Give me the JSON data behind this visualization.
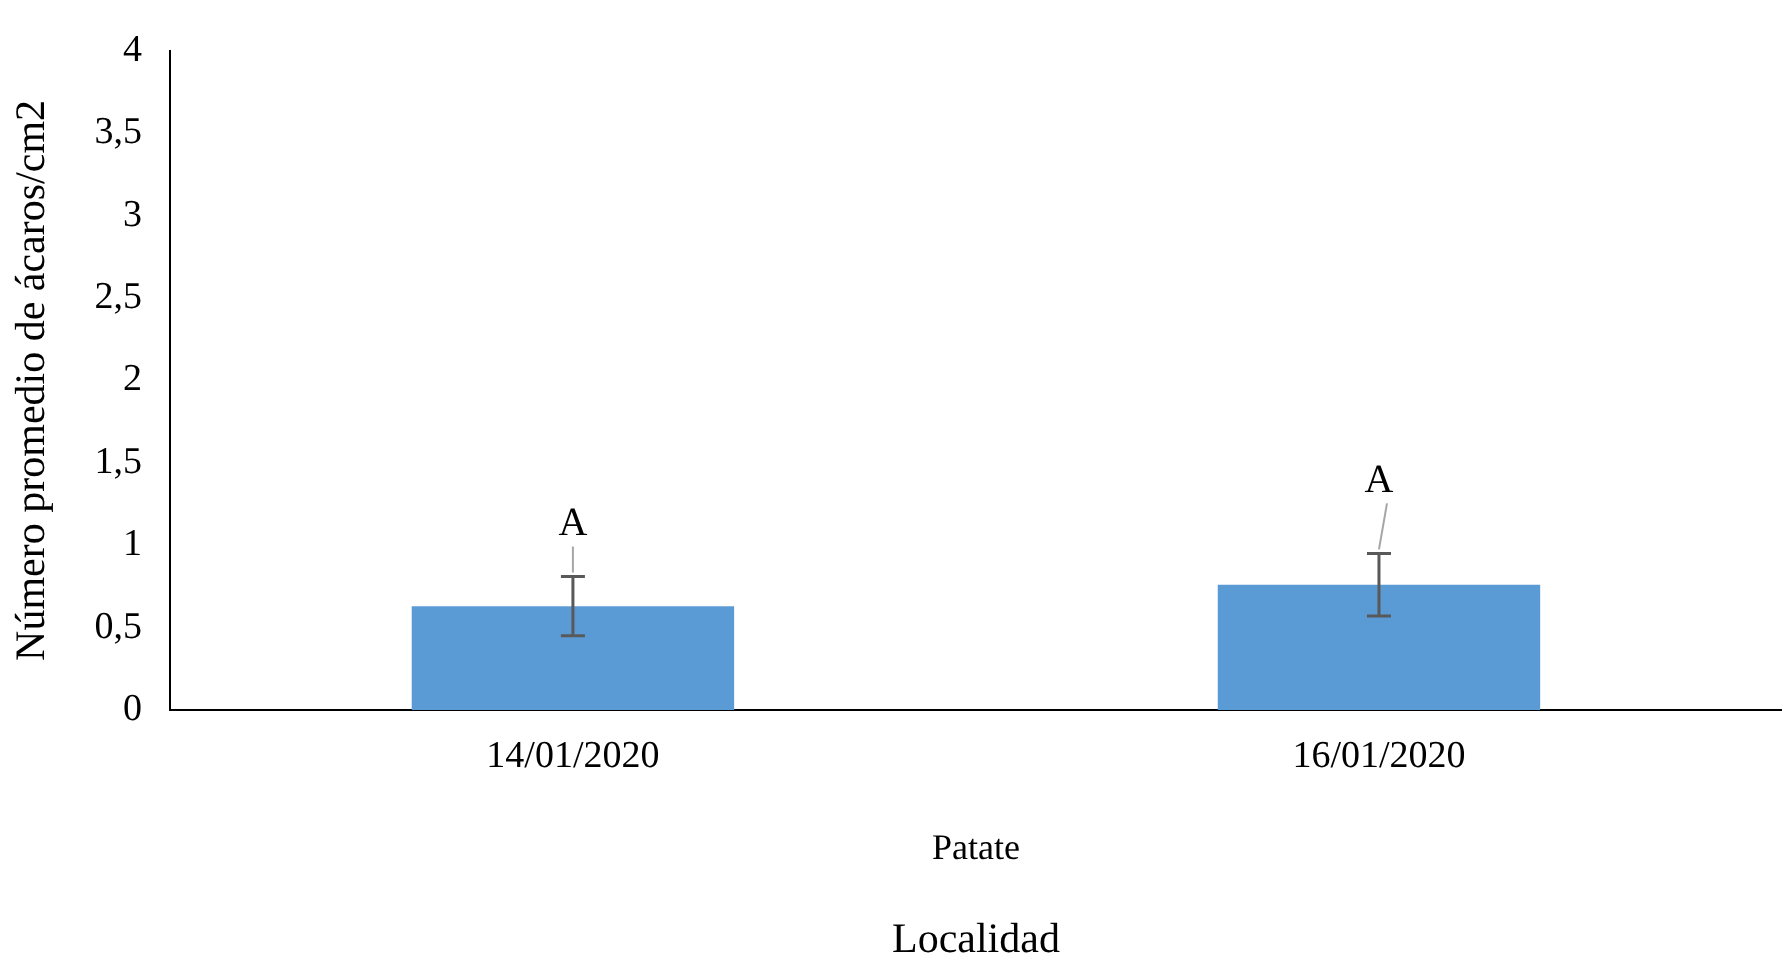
{
  "chart_data": {
    "type": "bar",
    "xlabel": "Localidad",
    "ylabel": "Número promedio de ácaros/cm2",
    "categories": [
      "14/01/2020",
      "16/01/2020"
    ],
    "values": [
      0.63,
      0.76
    ],
    "color": "#5b9bd5",
    "errors": [
      0.18,
      0.19
    ],
    "ylim": [
      0,
      4
    ],
    "yticks": [
      0,
      {
        "value": 0.5,
        "label": "0,5"
      },
      1,
      {
        "value": 1.5,
        "label": "1,5"
      },
      2,
      {
        "value": 2.5,
        "label": "2,5"
      },
      3,
      {
        "value": 3.5,
        "label": "3,5"
      },
      4
    ],
    "annotations": [
      "A",
      "A",
      "Patate"
    ],
    "grid": false,
    "legend": false
  }
}
